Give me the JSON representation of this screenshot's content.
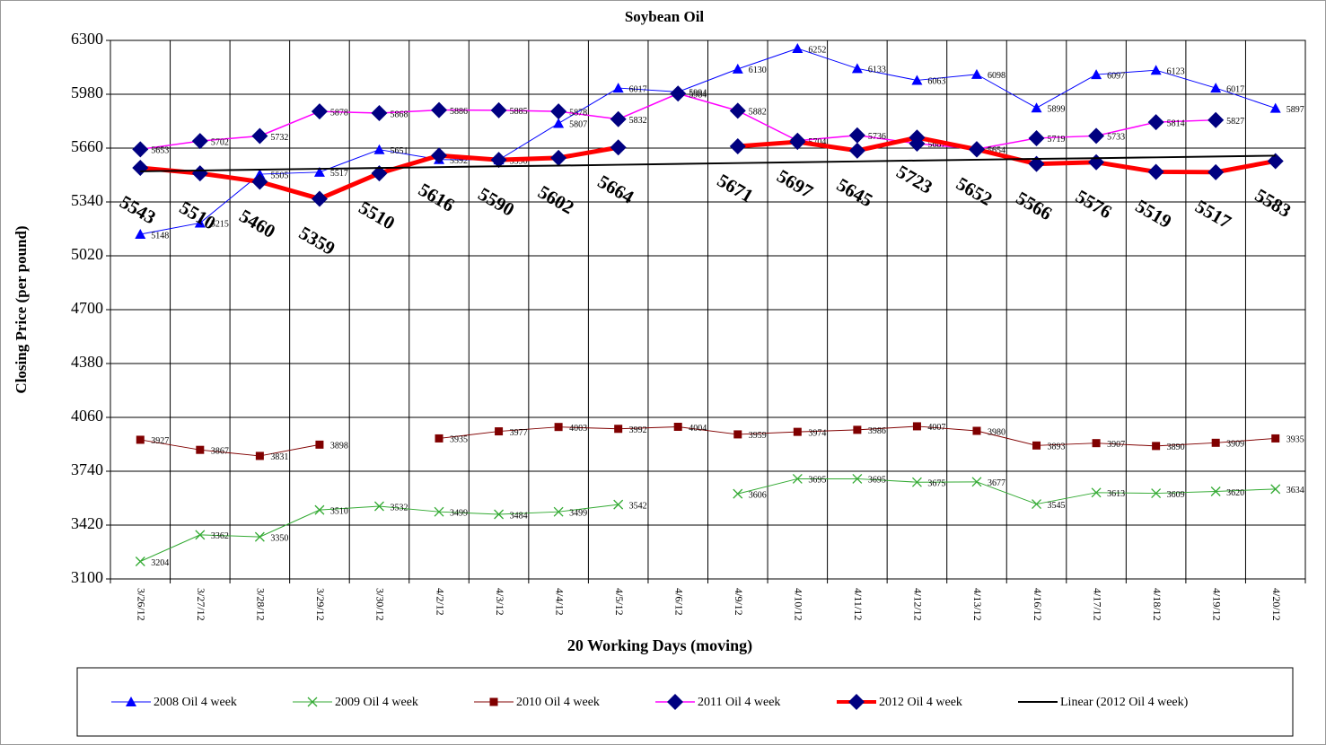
{
  "chart_data": {
    "type": "line",
    "title": "Soybean Oil",
    "x_label": "20 Working Days (moving)",
    "y_label": "Closing Price (per pound)",
    "categories": [
      "3/26/12",
      "3/27/12",
      "3/28/12",
      "3/29/12",
      "3/30/12",
      "4/2/12",
      "4/3/12",
      "4/4/12",
      "4/5/12",
      "4/6/12",
      "4/9/12",
      "4/10/12",
      "4/11/12",
      "4/12/12",
      "4/13/12",
      "4/16/12",
      "4/17/12",
      "4/18/12",
      "4/19/12",
      "4/20/12"
    ],
    "ylim": [
      3100,
      6300
    ],
    "yticks": [
      3100,
      3420,
      3740,
      4060,
      4380,
      4700,
      5020,
      5340,
      5660,
      5980,
      6300
    ],
    "grid": true,
    "legend": "bottom",
    "series": [
      {
        "name": "2008 Oil 4 week",
        "color": "#0000ff",
        "marker": "triangle",
        "width": 1,
        "data_labels": "small",
        "values": [
          5148,
          5215,
          5505,
          5517,
          5651,
          5592,
          5590,
          5807,
          6017,
          5994,
          6130,
          6252,
          6133,
          6063,
          6098,
          5899,
          6097,
          6123,
          6017,
          5897
        ]
      },
      {
        "name": "2009 Oil 4 week",
        "color": "#33aa33",
        "marker": "x",
        "width": 1,
        "data_labels": "small",
        "values": [
          3204,
          3362,
          3350,
          3510,
          3532,
          3499,
          3484,
          3499,
          3542,
          null,
          3606,
          3695,
          3695,
          3675,
          3677,
          3545,
          3613,
          3609,
          3620,
          3634
        ]
      },
      {
        "name": "2010 Oil 4 week",
        "color": "#800000",
        "marker": "square",
        "width": 1,
        "data_labels": "small",
        "values": [
          3927,
          3867,
          3831,
          3898,
          null,
          3935,
          3977,
          4003,
          3992,
          4004,
          3959,
          3974,
          3986,
          4007,
          3980,
          3893,
          3907,
          3890,
          3909,
          3935
        ]
      },
      {
        "name": "2011 Oil 4 week",
        "color": "#ff00ff",
        "marker": "diamond",
        "marker_color": "#000080",
        "width": 1.5,
        "data_labels": "small",
        "values": [
          5653,
          5702,
          5732,
          5878,
          5868,
          5886,
          5885,
          5878,
          5832,
          5984,
          5882,
          5704,
          5736,
          5687,
          5654,
          5719,
          5733,
          5814,
          5827,
          null
        ]
      },
      {
        "name": "2012 Oil 4 week",
        "color": "#ff0000",
        "marker": "diamond",
        "marker_color": "#000080",
        "width": 5,
        "data_labels": "large",
        "values": [
          5543,
          5510,
          5460,
          5359,
          5510,
          5616,
          5590,
          5602,
          5664,
          null,
          5671,
          5697,
          5645,
          5723,
          5652,
          5566,
          5576,
          5519,
          5517,
          5583
        ]
      },
      {
        "name": "Linear (2012 Oil 4 week)",
        "color": "#000000",
        "marker": "none",
        "width": 2,
        "data_labels": "none",
        "values": [
          5522,
          5527,
          5532,
          5537,
          5542,
          5547,
          5552,
          5556,
          5561,
          5566,
          5571,
          5576,
          5581,
          5586,
          5591,
          5596,
          5600,
          5605,
          5610,
          5615
        ]
      }
    ]
  }
}
